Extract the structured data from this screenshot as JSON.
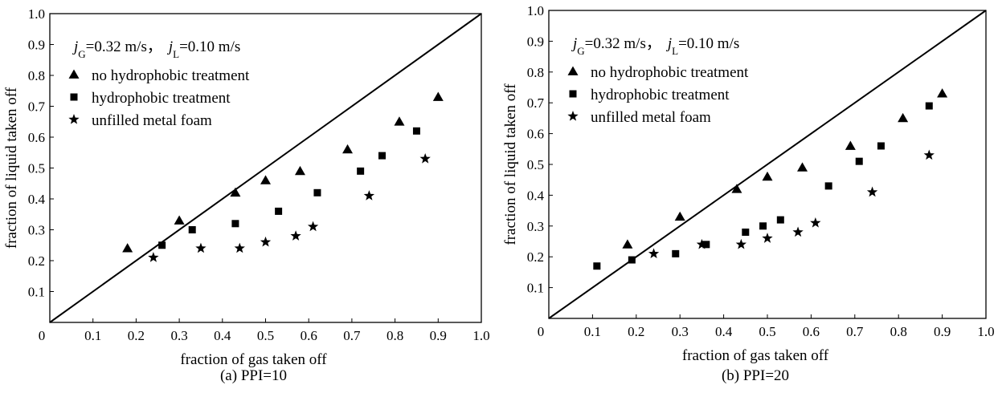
{
  "chart_data": [
    {
      "type": "scatter",
      "caption": "(a) PPI=10",
      "xlabel": "fraction of gas taken off",
      "ylabel": "fraction of liquid taken off",
      "xlim": [
        0,
        1.0
      ],
      "ylim": [
        0,
        1.0
      ],
      "xticks": [
        "0",
        "0.1",
        "0.2",
        "0.3",
        "0.4",
        "0.5",
        "0.6",
        "0.7",
        "0.8",
        "0.9",
        "1.0"
      ],
      "yticks": [
        "0.1",
        "0.2",
        "0.3",
        "0.4",
        "0.5",
        "0.6",
        "0.7",
        "0.8",
        "0.9",
        "1.0"
      ],
      "grid": false,
      "legend_position": "top-left",
      "conditions": {
        "jG_sym": "j",
        "jG_sub": "G",
        "jG_val": "=0.32 m/s，",
        "jL_sym": "j",
        "jL_sub": "L",
        "jL_val": "=0.10 m/s"
      },
      "reference_line": {
        "from": [
          0,
          0
        ],
        "to": [
          1.0,
          1.0
        ]
      },
      "series": [
        {
          "name": "no hydrophobic treatment",
          "marker": "triangle",
          "points": [
            [
              0.18,
              0.24
            ],
            [
              0.3,
              0.33
            ],
            [
              0.43,
              0.42
            ],
            [
              0.5,
              0.46
            ],
            [
              0.58,
              0.49
            ],
            [
              0.69,
              0.56
            ],
            [
              0.81,
              0.65
            ],
            [
              0.9,
              0.73
            ]
          ]
        },
        {
          "name": "hydrophobic treatment",
          "marker": "square",
          "points": [
            [
              0.26,
              0.25
            ],
            [
              0.33,
              0.3
            ],
            [
              0.43,
              0.32
            ],
            [
              0.53,
              0.36
            ],
            [
              0.62,
              0.42
            ],
            [
              0.72,
              0.49
            ],
            [
              0.77,
              0.54
            ],
            [
              0.85,
              0.62
            ]
          ]
        },
        {
          "name": "unfilled metal foam",
          "marker": "star",
          "points": [
            [
              0.24,
              0.21
            ],
            [
              0.35,
              0.24
            ],
            [
              0.44,
              0.24
            ],
            [
              0.5,
              0.26
            ],
            [
              0.57,
              0.28
            ],
            [
              0.61,
              0.31
            ],
            [
              0.74,
              0.41
            ],
            [
              0.87,
              0.53
            ]
          ]
        }
      ]
    },
    {
      "type": "scatter",
      "caption": "(b) PPI=20",
      "xlabel": "fraction of gas taken off",
      "ylabel": "fraction of liquid taken off",
      "xlim": [
        0,
        1.0
      ],
      "ylim": [
        0,
        1.0
      ],
      "xticks": [
        "0",
        "0.1",
        "0.2",
        "0.3",
        "0.4",
        "0.5",
        "0.6",
        "0.7",
        "0.8",
        "0.9",
        "1.0"
      ],
      "yticks": [
        "0.1",
        "0.2",
        "0.3",
        "0.4",
        "0.5",
        "0.6",
        "0.7",
        "0.8",
        "0.9",
        "1.0"
      ],
      "grid": false,
      "legend_position": "top-left",
      "conditions": {
        "jG_sym": "j",
        "jG_sub": "G",
        "jG_val": "=0.32 m/s，",
        "jL_sym": "j",
        "jL_sub": "L",
        "jL_val": "=0.10 m/s"
      },
      "reference_line": {
        "from": [
          0,
          0
        ],
        "to": [
          1.0,
          1.0
        ]
      },
      "series": [
        {
          "name": "no hydrophobic treatment",
          "marker": "triangle",
          "points": [
            [
              0.18,
              0.24
            ],
            [
              0.3,
              0.33
            ],
            [
              0.43,
              0.42
            ],
            [
              0.5,
              0.46
            ],
            [
              0.58,
              0.49
            ],
            [
              0.69,
              0.56
            ],
            [
              0.81,
              0.65
            ],
            [
              0.9,
              0.73
            ]
          ]
        },
        {
          "name": "hydrophobic treatment",
          "marker": "square",
          "points": [
            [
              0.11,
              0.17
            ],
            [
              0.19,
              0.19
            ],
            [
              0.29,
              0.21
            ],
            [
              0.36,
              0.24
            ],
            [
              0.45,
              0.28
            ],
            [
              0.49,
              0.3
            ],
            [
              0.53,
              0.32
            ],
            [
              0.64,
              0.43
            ],
            [
              0.71,
              0.51
            ],
            [
              0.76,
              0.56
            ],
            [
              0.87,
              0.69
            ]
          ]
        },
        {
          "name": "unfilled metal foam",
          "marker": "star",
          "points": [
            [
              0.24,
              0.21
            ],
            [
              0.35,
              0.24
            ],
            [
              0.44,
              0.24
            ],
            [
              0.5,
              0.26
            ],
            [
              0.57,
              0.28
            ],
            [
              0.61,
              0.31
            ],
            [
              0.74,
              0.41
            ],
            [
              0.87,
              0.53
            ]
          ]
        }
      ]
    }
  ]
}
